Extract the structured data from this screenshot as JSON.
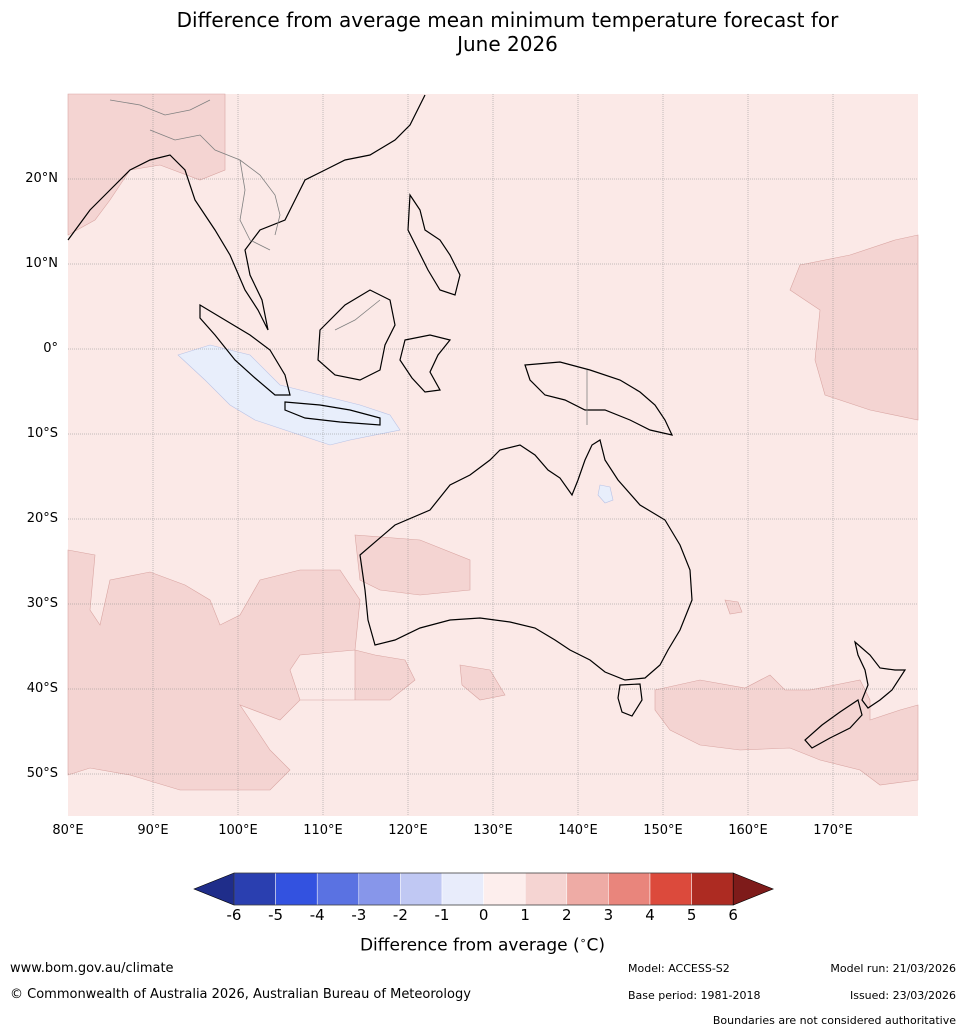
{
  "title": "Difference from average mean minimum temperature forecast for",
  "title_line2": "June 2026",
  "map": {
    "lat_labels": [
      "20°N",
      "10°N",
      "0°",
      "10°S",
      "20°S",
      "30°S",
      "40°S",
      "50°S"
    ],
    "lon_labels": [
      "80°E",
      "90°E",
      "100°E",
      "110°E",
      "120°E",
      "130°E",
      "140°E",
      "150°E",
      "160°E",
      "170°E"
    ],
    "extent": {
      "lon_min": 80,
      "lon_max": 180,
      "lat_min": -55,
      "lat_max": 30
    },
    "base_color": "#fbe9e7",
    "anomaly_warm_color": "#f4d4d2",
    "anomaly_cool_color": "#e8eefb"
  },
  "colorbar": {
    "title": "Difference from average ($^\\circ$C)",
    "title_display": "Difference from average (",
    "title_unit": "C)",
    "title_degree": "∘",
    "ticks": [
      "-6",
      "-5",
      "-4",
      "-3",
      "-2",
      "-1",
      "0",
      "1",
      "2",
      "3",
      "4",
      "5",
      "6"
    ],
    "colors": [
      "#1f2d8a",
      "#2a3fb0",
      "#3352e0",
      "#5a72e2",
      "#8796ea",
      "#c0c8f3",
      "#e8ecfb",
      "#fdeeed",
      "#f5d4d2",
      "#eeaba5",
      "#e9857c",
      "#dc4a3c",
      "#ad2b22",
      "#7e1b1a"
    ]
  },
  "footer": {
    "website": "www.bom.gov.au/climate",
    "copyright": "© Commonwealth of Australia 2026, Australian Bureau of Meteorology",
    "model": "Model: ACCESS-S2",
    "base_period": "Base period: 1981-2018",
    "model_run": "Model run: 21/03/2026",
    "issued": "Issued: 23/03/2026",
    "disclaimer": "Boundaries are not considered authoritative"
  }
}
